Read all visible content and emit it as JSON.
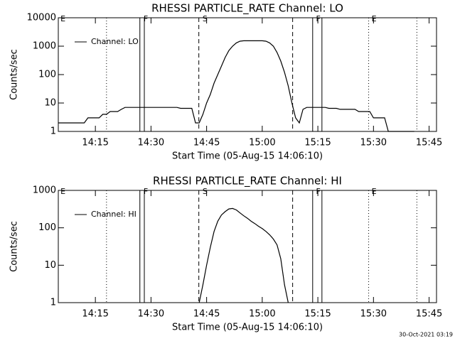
{
  "footer": "30-Oct-2021 03:19",
  "chart_data": [
    {
      "type": "line",
      "title": "RHESSI PARTICLE_RATE Channel: LO",
      "x_label": "Start Time (05-Aug-15 14:06:10)",
      "y_label": "Counts/sec",
      "log_y": true,
      "legend": "upper left",
      "xlim": [
        845,
        947
      ],
      "ylim": [
        1,
        10000
      ],
      "xticks": [
        {
          "value": 855,
          "label": "14:15"
        },
        {
          "value": 870,
          "label": "14:30"
        },
        {
          "value": 885,
          "label": "14:45"
        },
        {
          "value": 900,
          "label": "15:00"
        },
        {
          "value": 915,
          "label": "15:15"
        },
        {
          "value": 930,
          "label": "15:30"
        },
        {
          "value": 945,
          "label": "15:45"
        }
      ],
      "yticks": [
        1,
        10,
        100,
        1000,
        10000
      ],
      "events": [
        {
          "x": 858.0,
          "style": "dotted"
        },
        {
          "x": 867.0,
          "style": "solid"
        },
        {
          "x": 868.2,
          "style": "solid"
        },
        {
          "x": 882.9,
          "style": "dashed"
        },
        {
          "x": 908.2,
          "style": "dashed"
        },
        {
          "x": 913.6,
          "style": "solid"
        },
        {
          "x": 916.1,
          "style": "solid"
        },
        {
          "x": 928.7,
          "style": "dotted"
        },
        {
          "x": 941.7,
          "style": "dotted"
        }
      ],
      "flags": [
        {
          "x": 845.4,
          "label": "E"
        },
        {
          "x": 867.8,
          "label": "F"
        },
        {
          "x": 883.7,
          "label": "S"
        },
        {
          "x": 914.3,
          "label": "F"
        },
        {
          "x": 929.3,
          "label": "E"
        }
      ],
      "x": [
        845,
        846,
        847,
        848,
        849,
        850,
        851,
        852,
        853,
        854,
        855,
        856,
        857,
        858,
        859,
        860,
        861,
        862,
        863,
        864,
        865,
        866,
        867,
        868,
        869,
        870,
        871,
        872,
        873,
        874,
        875,
        876,
        877,
        878,
        879,
        880,
        881,
        882,
        883,
        884,
        885,
        886,
        887,
        888,
        889,
        890,
        891,
        892,
        893,
        894,
        895,
        896,
        897,
        898,
        899,
        900,
        901,
        902,
        903,
        904,
        905,
        906,
        907,
        908,
        909,
        910,
        911,
        912,
        913,
        914,
        915,
        916,
        917,
        918,
        919,
        920,
        921,
        922,
        923,
        924,
        925,
        926,
        927,
        928,
        929,
        930,
        931,
        932,
        933,
        934,
        935,
        936,
        937,
        938,
        939,
        940,
        941
      ],
      "series": [
        {
          "name": "Channel: LO",
          "color": "#000000",
          "values": [
            2,
            2,
            2,
            2,
            2,
            2,
            2,
            2,
            3,
            3,
            3,
            3,
            4,
            4,
            5,
            5,
            5,
            6,
            7,
            7,
            7,
            7,
            7,
            7,
            7,
            7,
            7,
            7,
            7,
            7,
            7,
            7,
            7,
            6.5,
            6.5,
            6.5,
            6.5,
            2,
            2,
            4,
            10,
            20,
            50,
            100,
            200,
            400,
            700,
            1000,
            1300,
            1500,
            1550,
            1550,
            1550,
            1550,
            1550,
            1550,
            1500,
            1300,
            1000,
            600,
            300,
            120,
            40,
            10,
            3,
            2,
            6,
            7,
            7,
            7,
            7,
            7,
            7,
            6.5,
            6.5,
            6.5,
            6,
            6,
            6,
            6,
            6,
            5,
            5,
            5,
            5,
            3,
            3,
            3,
            3,
            1,
            1,
            1,
            1,
            1,
            1,
            1,
            1
          ]
        }
      ]
    },
    {
      "type": "line",
      "title": "RHESSI PARTICLE_RATE Channel: HI",
      "x_label": "Start Time (05-Aug-15 14:06:10)",
      "y_label": "Counts/sec",
      "log_y": true,
      "legend": "upper left",
      "xlim": [
        845,
        947
      ],
      "ylim": [
        1,
        1000
      ],
      "xticks": [
        {
          "value": 855,
          "label": "14:15"
        },
        {
          "value": 870,
          "label": "14:30"
        },
        {
          "value": 885,
          "label": "14:45"
        },
        {
          "value": 900,
          "label": "15:00"
        },
        {
          "value": 915,
          "label": "15:15"
        },
        {
          "value": 930,
          "label": "15:30"
        },
        {
          "value": 945,
          "label": "15:45"
        }
      ],
      "yticks": [
        1,
        10,
        100,
        1000
      ],
      "events": [
        {
          "x": 858.0,
          "style": "dotted"
        },
        {
          "x": 867.0,
          "style": "solid"
        },
        {
          "x": 868.2,
          "style": "solid"
        },
        {
          "x": 882.9,
          "style": "dashed"
        },
        {
          "x": 908.2,
          "style": "dashed"
        },
        {
          "x": 913.6,
          "style": "solid"
        },
        {
          "x": 916.1,
          "style": "solid"
        },
        {
          "x": 928.7,
          "style": "dotted"
        },
        {
          "x": 941.7,
          "style": "dotted"
        }
      ],
      "flags": [
        {
          "x": 845.4,
          "label": "E"
        },
        {
          "x": 867.8,
          "label": "F"
        },
        {
          "x": 883.7,
          "label": "S"
        },
        {
          "x": 914.3,
          "label": "F"
        },
        {
          "x": 929.3,
          "label": "E"
        }
      ],
      "x": [
        883,
        884,
        885,
        886,
        887,
        888,
        889,
        890,
        891,
        892,
        893,
        894,
        895,
        896,
        897,
        898,
        899,
        900,
        901,
        902,
        903,
        904,
        905,
        906,
        907
      ],
      "series": [
        {
          "name": "Channel: HI",
          "color": "#000000",
          "values": [
            1,
            3,
            10,
            30,
            80,
            150,
            220,
            270,
            320,
            330,
            300,
            250,
            210,
            180,
            150,
            130,
            110,
            95,
            80,
            65,
            50,
            35,
            15,
            3,
            1
          ]
        }
      ]
    }
  ]
}
